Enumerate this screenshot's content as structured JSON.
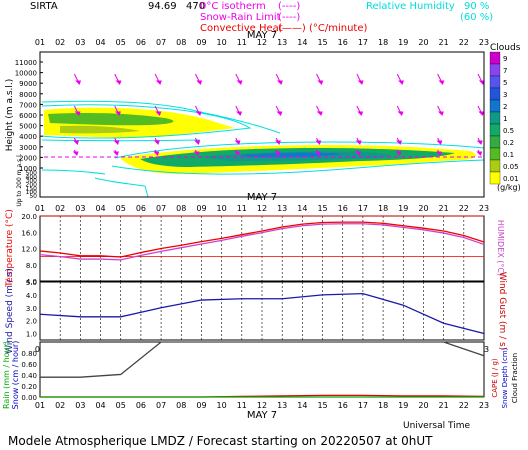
{
  "header": {
    "station": "SIRTA",
    "coords": "94.69",
    "coords_tail": "470",
    "legend_iso": "0°C isotherm",
    "legend_iso_sym": "(----)",
    "legend_snow": "Snow-Rain Limit",
    "legend_snow_sym": "(----)",
    "legend_conv": "Convective Heat",
    "legend_conv_sym": "(——) (°C/minute)",
    "rh_label": "Relative Humidity",
    "rh_90": "90 %",
    "rh_60": "(60 %)"
  },
  "date_label": "MAY  7",
  "hours": [
    "01",
    "02",
    "03",
    "04",
    "05",
    "06",
    "07",
    "08",
    "09",
    "10",
    "11",
    "12",
    "13",
    "14",
    "15",
    "16",
    "17",
    "18",
    "19",
    "20",
    "21",
    "22",
    "23"
  ],
  "footer": "Modele Atmospherique LMDZ / Forecast starting on 20220507 at 0hUT",
  "universal_time": "Universal Time",
  "colors": {
    "wind_arrow": "#ee00ee",
    "rh_line": "#00e0e0",
    "temp": "#ee0000",
    "humidex": "#cc44cc",
    "wind": "#1a1aaa",
    "rain_title": "#00aa00",
    "snow_title": "#0000cc",
    "cape_title": "#cc0000",
    "cloud_fraction_line": "#444444"
  },
  "chart_data": [
    {
      "type": "heatmap",
      "title": "Clouds",
      "ylabel": "Height (m a.s.l.)",
      "ylabel_sub": "Up to 200 m a.s.l.",
      "yticks_upper": [
        11000,
        10000,
        9000,
        8000,
        7000,
        6000,
        5000,
        4000,
        3000,
        2000,
        1000
      ],
      "yticks_lower": [
        500,
        400,
        300,
        200,
        150,
        100,
        50
      ],
      "colorbar": {
        "title": "Clouds",
        "unit": "(g/kg)",
        "levels": [
          "9",
          "7",
          "5",
          "3",
          "2",
          "1",
          "0.5",
          "0.2",
          "0.1",
          "0.05",
          "0.01"
        ],
        "colors": [
          "#cc00cc",
          "#8844ee",
          "#5555ee",
          "#2255dd",
          "#1177cc",
          "#119988",
          "#11aa66",
          "#33aa44",
          "#55bb22",
          "#aacc11",
          "#ffff00"
        ]
      },
      "freezing_level_m": 1900
    },
    {
      "type": "line",
      "ylabel": "Temperature (°C)",
      "ylabel_right": "HUMIDEX (°C)",
      "yticks": [
        "20.0",
        "16.0",
        "12.0",
        "8.0",
        "4.0"
      ],
      "ylim": [
        4,
        20
      ],
      "x": [
        1,
        2,
        3,
        4,
        5,
        6,
        7,
        8,
        9,
        10,
        11,
        12,
        13,
        14,
        15,
        16,
        17,
        18,
        19,
        20,
        21,
        22,
        23
      ],
      "series": [
        {
          "name": "Temperature",
          "values": [
            11.4,
            10.9,
            10.2,
            10.2,
            9.9,
            11.0,
            12.0,
            12.8,
            13.7,
            14.5,
            15.4,
            16.3,
            17.3,
            18.0,
            18.4,
            18.5,
            18.5,
            18.2,
            17.6,
            17.0,
            16.3,
            15.2,
            13.6
          ]
        },
        {
          "name": "HUMIDEX",
          "values": [
            10.5,
            10.0,
            9.4,
            9.4,
            9.2,
            10.3,
            11.3,
            12.2,
            13.1,
            14.0,
            15.0,
            15.9,
            16.9,
            17.6,
            18.0,
            18.1,
            18.1,
            17.8,
            17.2,
            16.6,
            15.8,
            14.7,
            13.0
          ]
        }
      ],
      "reference_lines": [
        20,
        10
      ]
    },
    {
      "type": "line",
      "ylabel": "Wind Speed (m / s)",
      "ylabel_right": "Wind Gust (m / s)",
      "yticks": [
        "5.0",
        "4.0",
        "3.0",
        "2.0",
        "1.0"
      ],
      "ylim": [
        0.5,
        5
      ],
      "x": [
        1,
        3,
        5,
        7,
        9,
        11,
        13,
        15,
        17,
        19,
        21,
        23
      ],
      "series": [
        {
          "name": "Wind Speed",
          "values": [
            2.5,
            2.3,
            2.3,
            3.0,
            3.6,
            3.7,
            3.7,
            4.0,
            4.1,
            3.2,
            1.8,
            1.0
          ]
        }
      ]
    },
    {
      "type": "line",
      "ylabel": "Rain (mm / hour)",
      "ylabel_snow": "Snow (cm / hour)",
      "ylabel_right": "CAPE (J / g)",
      "ylabel_right2": "Snow Depth (cm)",
      "ylabel_right3": "Cloud Fraction",
      "xlabel": "Universal Time",
      "yticks": [
        "0.80",
        "0.60",
        "0.40",
        "0.20",
        "0.00"
      ],
      "ylim": [
        0,
        1
      ],
      "x": [
        1,
        3,
        5,
        7,
        9,
        11,
        13,
        15,
        17,
        19,
        21,
        23
      ],
      "series": [
        {
          "name": "Cloud Fraction",
          "values": [
            0.36,
            0.36,
            0.41,
            1.0,
            1.0,
            1.0,
            1.0,
            1.0,
            1.0,
            1.0,
            1.0,
            0.75
          ]
        },
        {
          "name": "CAPE",
          "values": [
            0,
            0,
            0,
            0,
            0,
            0.01,
            0.02,
            0.03,
            0.03,
            0.02,
            0.02,
            0.01
          ]
        },
        {
          "name": "Rain",
          "values": [
            0,
            0,
            0,
            0,
            0,
            0,
            0,
            0,
            0,
            0,
            0,
            0
          ]
        }
      ]
    }
  ]
}
